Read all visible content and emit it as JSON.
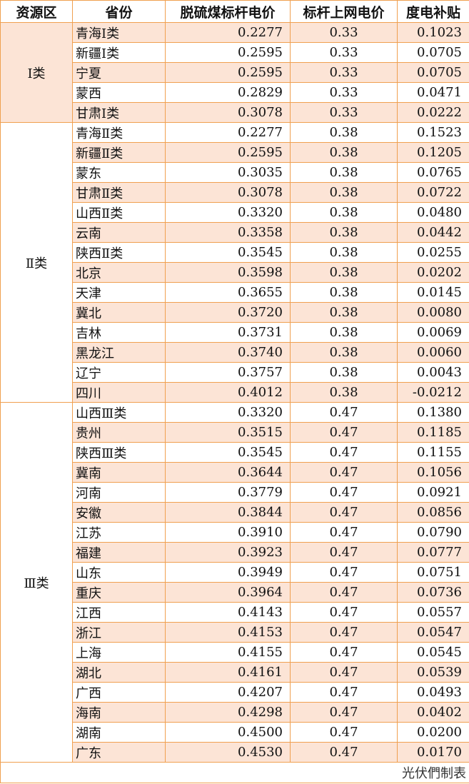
{
  "headers": [
    "资源区",
    "省份",
    "脱硫煤标杆电价",
    "标杆上网电价",
    "度电补贴"
  ],
  "colors": {
    "border": "#f0a050",
    "shade": "#fce4d6"
  },
  "groups": [
    {
      "region": "Ⅰ类",
      "rows": [
        [
          "青海Ⅰ类",
          "0.2277",
          "0.33",
          "0.1023"
        ],
        [
          "新疆Ⅰ类",
          "0.2595",
          "0.33",
          "0.0705"
        ],
        [
          "宁夏",
          "0.2595",
          "0.33",
          "0.0705"
        ],
        [
          "蒙西",
          "0.2829",
          "0.33",
          "0.0471"
        ],
        [
          "甘肃Ⅰ类",
          "0.3078",
          "0.33",
          "0.0222"
        ]
      ]
    },
    {
      "region": "Ⅱ类",
      "rows": [
        [
          "青海Ⅱ类",
          "0.2277",
          "0.38",
          "0.1523"
        ],
        [
          "新疆Ⅱ类",
          "0.2595",
          "0.38",
          "0.1205"
        ],
        [
          "蒙东",
          "0.3035",
          "0.38",
          "0.0765"
        ],
        [
          "甘肃Ⅱ类",
          "0.3078",
          "0.38",
          "0.0722"
        ],
        [
          "山西Ⅱ类",
          "0.3320",
          "0.38",
          "0.0480"
        ],
        [
          "云南",
          "0.3358",
          "0.38",
          "0.0442"
        ],
        [
          "陕西Ⅱ类",
          "0.3545",
          "0.38",
          "0.0255"
        ],
        [
          "北京",
          "0.3598",
          "0.38",
          "0.0202"
        ],
        [
          "天津",
          "0.3655",
          "0.38",
          "0.0145"
        ],
        [
          "冀北",
          "0.3720",
          "0.38",
          "0.0080"
        ],
        [
          "吉林",
          "0.3731",
          "0.38",
          "0.0069"
        ],
        [
          "黑龙江",
          "0.3740",
          "0.38",
          "0.0060"
        ],
        [
          "辽宁",
          "0.3757",
          "0.38",
          "0.0043"
        ],
        [
          "四川",
          "0.4012",
          "0.38",
          "-0.0212"
        ]
      ]
    },
    {
      "region": "Ⅲ类",
      "rows": [
        [
          "山西Ⅲ类",
          "0.3320",
          "0.47",
          "0.1380"
        ],
        [
          "贵州",
          "0.3515",
          "0.47",
          "0.1185"
        ],
        [
          "陕西Ⅲ类",
          "0.3545",
          "0.47",
          "0.1155"
        ],
        [
          "冀南",
          "0.3644",
          "0.47",
          "0.1056"
        ],
        [
          "河南",
          "0.3779",
          "0.47",
          "0.0921"
        ],
        [
          "安徽",
          "0.3844",
          "0.47",
          "0.0856"
        ],
        [
          "江苏",
          "0.3910",
          "0.47",
          "0.0790"
        ],
        [
          "福建",
          "0.3923",
          "0.47",
          "0.0777"
        ],
        [
          "山东",
          "0.3949",
          "0.47",
          "0.0751"
        ],
        [
          "重庆",
          "0.3964",
          "0.47",
          "0.0736"
        ],
        [
          "江西",
          "0.4143",
          "0.47",
          "0.0557"
        ],
        [
          "浙江",
          "0.4153",
          "0.47",
          "0.0547"
        ],
        [
          "上海",
          "0.4155",
          "0.47",
          "0.0545"
        ],
        [
          "湖北",
          "0.4161",
          "0.47",
          "0.0539"
        ],
        [
          "广西",
          "0.4207",
          "0.47",
          "0.0493"
        ],
        [
          "海南",
          "0.4298",
          "0.47",
          "0.0402"
        ],
        [
          "湖南",
          "0.4500",
          "0.47",
          "0.0200"
        ],
        [
          "广东",
          "0.4530",
          "0.47",
          "0.0170"
        ]
      ]
    }
  ],
  "footer": "光伏們制表"
}
